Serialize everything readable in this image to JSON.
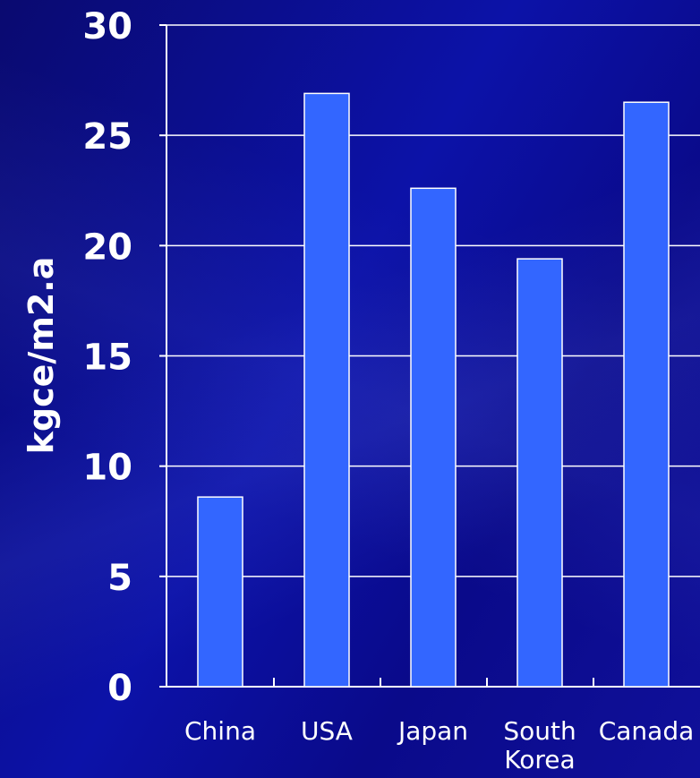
{
  "chart_data": {
    "type": "bar",
    "title": "",
    "xlabel": "",
    "ylabel": "kgce/m2.a",
    "categories": [
      [
        "China"
      ],
      [
        "USA"
      ],
      [
        "Japan"
      ],
      [
        "South",
        "Korea"
      ],
      [
        "Canada"
      ]
    ],
    "values": [
      8.6,
      26.9,
      22.6,
      19.4,
      26.5
    ],
    "ylim": [
      0,
      30
    ],
    "yticks": [
      0,
      5,
      10,
      15,
      20,
      25,
      30
    ],
    "grid": true,
    "legend": "none",
    "colors": {
      "bar": "#3366ff",
      "bar_stroke": "#ffffff",
      "grid": "#ffffff",
      "background": "#0a0a8c"
    }
  }
}
